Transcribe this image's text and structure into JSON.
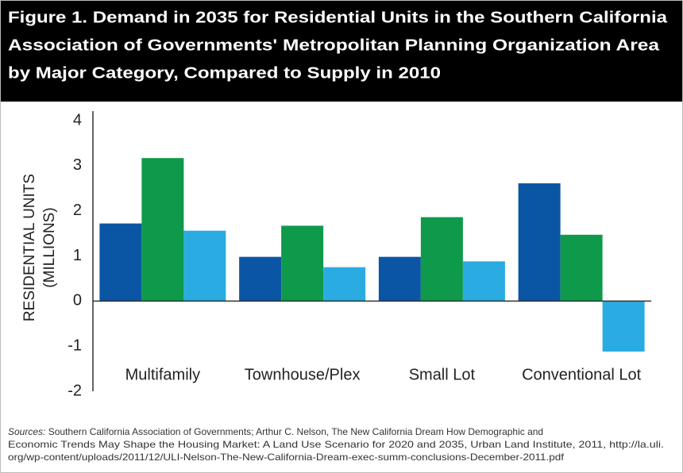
{
  "chart_data": {
    "type": "bar",
    "title": [
      "Figure 1. Demand in 2035 for Residential Units in the Southern California",
      "Association of Governments' Metropolitan Planning Organization Area",
      "by Major Category, Compared to Supply in 2010"
    ],
    "y_label": [
      "RESIDENTIAL  UNITS",
      "(MILLIONS)"
    ],
    "categories": [
      "Multifamily",
      "Townhouse/Plex",
      "Small Lot",
      "Conventional Lot"
    ],
    "series": [
      {
        "color": "#0b56a4",
        "values": [
          1.72,
          0.98,
          0.98,
          2.61
        ]
      },
      {
        "color": "#0e9a4a",
        "values": [
          3.17,
          1.67,
          1.86,
          1.47
        ]
      },
      {
        "color": "#2aace2",
        "values": [
          1.56,
          0.75,
          0.88,
          -1.12
        ]
      }
    ],
    "ylim": [
      -2,
      4
    ],
    "yticks": [
      -2,
      -1,
      0,
      1,
      2,
      3,
      4
    ],
    "grid": false,
    "sources": {
      "label": "Sources:",
      "lines": [
        "Southern California Association of Governments; Arthur C. Nelson, The New California Dream How Demographic and",
        "Economic Trends May Shape the Housing Market: A Land Use Scenario for 2020 and 2035, Urban Land Institute, 2011, http://la.uli.",
        "org/wp-content/uploads/2011/12/ULI-Nelson-The-New-California-Dream-exec-summ-conclusions-December-2011.pdf"
      ]
    }
  }
}
